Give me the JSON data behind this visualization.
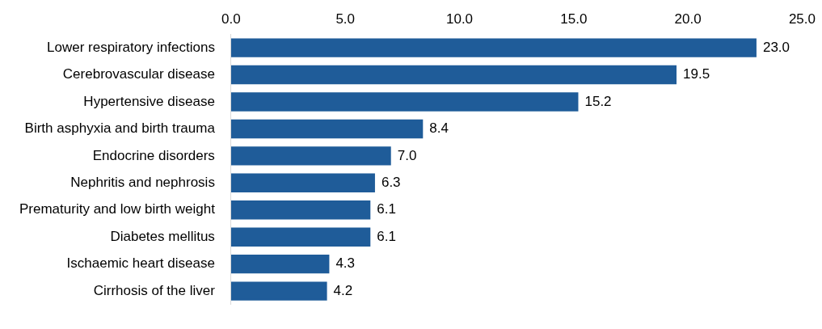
{
  "chart_data": {
    "type": "bar",
    "orientation": "horizontal",
    "categories": [
      "Lower respiratory infections",
      "Cerebrovascular disease",
      "Hypertensive disease",
      "Birth asphyxia and birth trauma",
      "Endocrine disorders",
      "Nephritis and nephrosis",
      "Prematurity and low birth weight",
      "Diabetes mellitus",
      "Ischaemic heart disease",
      "Cirrhosis of the liver"
    ],
    "values": [
      23.0,
      19.5,
      15.2,
      8.4,
      7.0,
      6.3,
      6.1,
      6.1,
      4.3,
      4.2
    ],
    "value_labels": [
      "23.0",
      "19.5",
      "15.2",
      "8.4",
      "7.0",
      "6.3",
      "6.1",
      "6.1",
      "4.3",
      "4.2"
    ],
    "color": "#1f5c99",
    "xlim": [
      0,
      25
    ],
    "xticks": [
      {
        "value": 0,
        "label": "0.0"
      },
      {
        "value": 5,
        "label": "5.0"
      },
      {
        "value": 10,
        "label": "10.0"
      },
      {
        "value": 15,
        "label": "15.0"
      },
      {
        "value": 20,
        "label": "20.0"
      },
      {
        "value": 25,
        "label": "25.0"
      }
    ],
    "grid": false,
    "legend": false
  }
}
